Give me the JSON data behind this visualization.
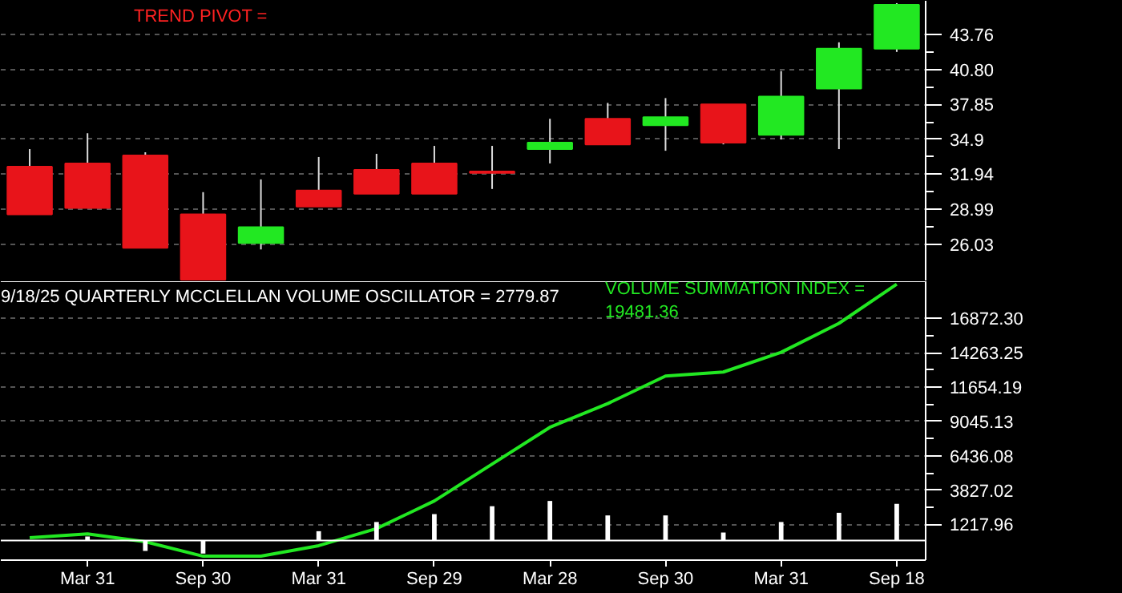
{
  "chart_data": [
    {
      "type": "candlestick",
      "categories": [
        null,
        null,
        null,
        null,
        null,
        null,
        null,
        null,
        null,
        null,
        null,
        null,
        null,
        null,
        null,
        null
      ],
      "ohlc": [
        [
          32.59,
          34.07,
          28.55,
          28.55
        ],
        [
          32.86,
          35.41,
          29.09,
          29.09
        ],
        [
          33.53,
          33.8,
          25.72,
          25.72
        ],
        [
          28.55,
          30.43,
          23.03,
          23.03
        ],
        [
          26.13,
          31.51,
          25.59,
          27.47
        ],
        [
          30.57,
          33.4,
          29.22,
          29.22
        ],
        [
          32.32,
          33.67,
          30.3,
          30.3
        ],
        [
          32.86,
          34.34,
          30.3,
          30.3
        ],
        [
          32.18,
          34.34,
          30.7,
          32.05
        ],
        [
          34.07,
          36.63,
          32.86,
          34.61
        ],
        [
          36.63,
          37.97,
          34.47,
          34.47
        ],
        [
          36.09,
          38.38,
          33.93,
          36.76
        ],
        [
          37.84,
          37.84,
          34.47,
          34.61
        ],
        [
          35.28,
          40.66,
          34.88,
          38.51
        ],
        [
          39.18,
          43.09,
          34.07,
          42.55
        ],
        [
          42.55,
          46.4,
          42.28,
          46.26
        ]
      ],
      "colors": [
        "#e8141a",
        "#e8141a",
        "#e8141a",
        "#e8141a",
        "#22e822",
        "#e8141a",
        "#e8141a",
        "#e8141a",
        "#e8141a",
        "#22e822",
        "#e8141a",
        "#22e822",
        "#e8141a",
        "#22e822",
        "#22e822",
        "#22e822"
      ],
      "ylim": [
        22.9,
        46.6
      ],
      "yticks": [
        26.03,
        28.99,
        31.94,
        34.9,
        {
          "value": 37.85,
          "label": "37.85"
        },
        {
          "value": 40.8,
          "label": "40.80"
        },
        43.76
      ],
      "grid": "y",
      "tick_labels": "y",
      "annotations": [
        "TREND PIVOT ="
      ]
    },
    {
      "type": "line",
      "categories": [
        null,
        "Mar 31",
        null,
        "Sep 30",
        null,
        "Mar 31",
        null,
        "Sep 29",
        null,
        "Mar 28",
        null,
        "Sep 30",
        null,
        "Mar 31",
        null,
        "Sep 18"
      ],
      "series": [
        {
          "type": "line",
          "color": "#22e822",
          "values": [
            200,
            500,
            -100,
            -1200,
            -1200,
            -400,
            900,
            3000,
            5800,
            8600,
            10400,
            12500,
            12800,
            14300,
            16500,
            19481.36
          ]
        },
        {
          "type": "bar",
          "color": "#ffffff",
          "values": [
            null,
            300,
            -800,
            -1000,
            0,
            700,
            1400,
            2000,
            2600,
            3000,
            1900,
            1900,
            600,
            1400,
            2100,
            2779.87
          ]
        }
      ],
      "ylim": [
        -1500,
        19700
      ],
      "yticks": [
        1217.96,
        3827.02,
        6436.08,
        9045.13,
        11654.19,
        14263.25,
        {
          "value": 16872.3,
          "label": "16872.30"
        }
      ],
      "ref_lines": [
        {
          "axis": "y",
          "value": 0,
          "color": "#ffffff"
        }
      ],
      "grid": "y",
      "annotations": [
        "9/18/25 QUARTERLY MCCLELLAN VOLUME OSCILLATOR = 2779.87",
        "VOLUME SUMMATION INDEX = 19481.36"
      ]
    }
  ]
}
